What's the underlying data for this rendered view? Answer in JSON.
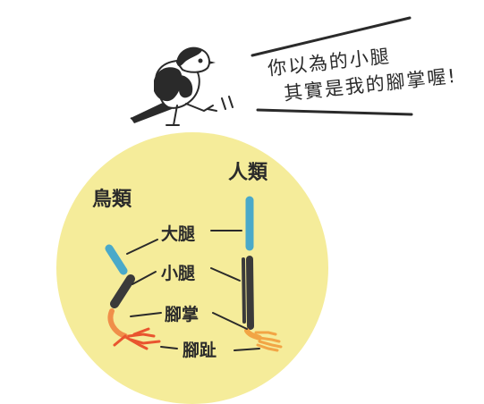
{
  "speech": {
    "line1": "你以為的小腿",
    "line2": "其實是我的腳掌喔!"
  },
  "groups": {
    "bird": "鳥類",
    "human": "人類"
  },
  "parts": {
    "thigh": "大腿",
    "shin": "小腿",
    "sole": "腳掌",
    "toes": "腳趾"
  },
  "colors": {
    "circle": "#f5ec9a",
    "thigh": "#4aa9c9",
    "shin": "#3a3a3a",
    "foot_bird": "#f08f4a",
    "toes_bird": "#e9552f",
    "foot_human": "#f2a545",
    "ink": "#2a2a2a"
  }
}
